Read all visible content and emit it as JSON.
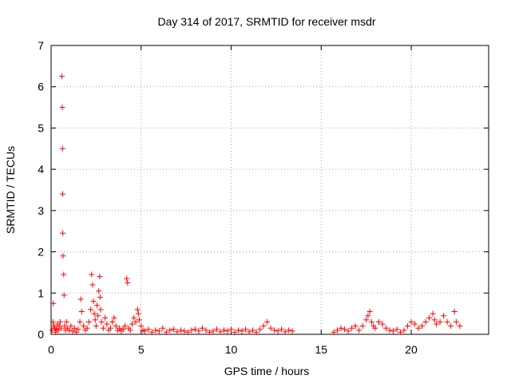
{
  "chart_data": {
    "type": "scatter",
    "title": "Day 314 of 2017, SRMTID for receiver msdr",
    "xlabel": "GPS time / hours",
    "ylabel": "SRMTID / TECUs",
    "xlim": [
      0,
      24.3
    ],
    "ylim": [
      0,
      7
    ],
    "xticks": [
      0,
      5,
      10,
      15,
      20
    ],
    "xtick_labels": [
      "0",
      "5",
      "10",
      "15",
      "20"
    ],
    "yticks": [
      0,
      1,
      2,
      3,
      4,
      5,
      6,
      7
    ],
    "ytick_labels": [
      "0",
      "1",
      "2",
      "3",
      "4",
      "5",
      "6",
      "7"
    ],
    "grid": true,
    "marker": "+",
    "color": "#ff0000",
    "series": [
      {
        "name": "SRMTID",
        "points": [
          [
            0.05,
            0.1
          ],
          [
            0.1,
            0.3
          ],
          [
            0.12,
            0.75
          ],
          [
            0.15,
            0.2
          ],
          [
            0.2,
            0.15
          ],
          [
            0.25,
            0.05
          ],
          [
            0.3,
            0.12
          ],
          [
            0.35,
            0.25
          ],
          [
            0.4,
            0.1
          ],
          [
            0.45,
            0.2
          ],
          [
            0.5,
            0.3
          ],
          [
            0.55,
            0.15
          ],
          [
            0.6,
            6.25
          ],
          [
            0.62,
            5.5
          ],
          [
            0.63,
            4.5
          ],
          [
            0.64,
            3.4
          ],
          [
            0.65,
            2.45
          ],
          [
            0.66,
            1.9
          ],
          [
            0.7,
            1.45
          ],
          [
            0.72,
            0.95
          ],
          [
            0.75,
            0.2
          ],
          [
            0.8,
            0.1
          ],
          [
            0.85,
            0.3
          ],
          [
            0.9,
            0.15
          ],
          [
            1.0,
            0.1
          ],
          [
            1.1,
            0.2
          ],
          [
            1.2,
            0.08
          ],
          [
            1.3,
            0.15
          ],
          [
            1.4,
            0.05
          ],
          [
            1.5,
            0.12
          ],
          [
            1.6,
            0.3
          ],
          [
            1.65,
            0.85
          ],
          [
            1.7,
            0.55
          ],
          [
            1.8,
            0.2
          ],
          [
            1.9,
            0.1
          ],
          [
            2.0,
            0.15
          ],
          [
            2.1,
            0.3
          ],
          [
            2.2,
            0.6
          ],
          [
            2.25,
            1.45
          ],
          [
            2.3,
            1.2
          ],
          [
            2.35,
            0.8
          ],
          [
            2.4,
            0.5
          ],
          [
            2.45,
            0.35
          ],
          [
            2.5,
            0.2
          ],
          [
            2.55,
            0.7
          ],
          [
            2.6,
            0.45
          ],
          [
            2.65,
            1.05
          ],
          [
            2.7,
            1.4
          ],
          [
            2.72,
            0.9
          ],
          [
            2.75,
            0.6
          ],
          [
            2.8,
            0.3
          ],
          [
            2.9,
            0.15
          ],
          [
            3.0,
            0.4
          ],
          [
            3.1,
            0.25
          ],
          [
            3.2,
            0.1
          ],
          [
            3.3,
            0.15
          ],
          [
            3.4,
            0.3
          ],
          [
            3.5,
            0.4
          ],
          [
            3.6,
            0.2
          ],
          [
            3.7,
            0.1
          ],
          [
            3.8,
            0.15
          ],
          [
            3.9,
            0.08
          ],
          [
            4.0,
            0.12
          ],
          [
            4.1,
            0.2
          ],
          [
            4.2,
            1.35
          ],
          [
            4.25,
            1.25
          ],
          [
            4.3,
            0.15
          ],
          [
            4.4,
            0.1
          ],
          [
            4.5,
            0.25
          ],
          [
            4.6,
            0.4
          ],
          [
            4.7,
            0.3
          ],
          [
            4.8,
            0.6
          ],
          [
            4.85,
            0.5
          ],
          [
            4.9,
            0.35
          ],
          [
            5.0,
            0.2
          ],
          [
            5.1,
            0.1
          ],
          [
            5.2,
            0.08
          ],
          [
            5.4,
            0.12
          ],
          [
            5.6,
            0.05
          ],
          [
            5.8,
            0.1
          ],
          [
            6.0,
            0.08
          ],
          [
            6.2,
            0.15
          ],
          [
            6.4,
            0.05
          ],
          [
            6.6,
            0.1
          ],
          [
            6.8,
            0.12
          ],
          [
            7.0,
            0.06
          ],
          [
            7.2,
            0.1
          ],
          [
            7.4,
            0.08
          ],
          [
            7.6,
            0.05
          ],
          [
            7.8,
            0.1
          ],
          [
            8.0,
            0.12
          ],
          [
            8.2,
            0.08
          ],
          [
            8.4,
            0.15
          ],
          [
            8.6,
            0.1
          ],
          [
            8.8,
            0.05
          ],
          [
            9.0,
            0.08
          ],
          [
            9.2,
            0.12
          ],
          [
            9.4,
            0.06
          ],
          [
            9.6,
            0.1
          ],
          [
            9.8,
            0.08
          ],
          [
            10.0,
            0.12
          ],
          [
            10.2,
            0.05
          ],
          [
            10.4,
            0.1
          ],
          [
            10.6,
            0.08
          ],
          [
            10.8,
            0.12
          ],
          [
            11.0,
            0.06
          ],
          [
            11.2,
            0.1
          ],
          [
            11.4,
            0.05
          ],
          [
            11.6,
            0.12
          ],
          [
            11.8,
            0.2
          ],
          [
            12.0,
            0.3
          ],
          [
            12.2,
            0.15
          ],
          [
            12.4,
            0.1
          ],
          [
            12.6,
            0.08
          ],
          [
            12.8,
            0.12
          ],
          [
            13.0,
            0.06
          ],
          [
            13.2,
            0.1
          ],
          [
            13.4,
            0.08
          ],
          [
            15.7,
            0.05
          ],
          [
            15.9,
            0.1
          ],
          [
            16.1,
            0.15
          ],
          [
            16.3,
            0.12
          ],
          [
            16.5,
            0.08
          ],
          [
            16.7,
            0.15
          ],
          [
            16.9,
            0.2
          ],
          [
            17.1,
            0.1
          ],
          [
            17.3,
            0.2
          ],
          [
            17.5,
            0.35
          ],
          [
            17.6,
            0.45
          ],
          [
            17.7,
            0.55
          ],
          [
            17.8,
            0.3
          ],
          [
            17.9,
            0.2
          ],
          [
            18.0,
            0.15
          ],
          [
            18.2,
            0.3
          ],
          [
            18.4,
            0.25
          ],
          [
            18.6,
            0.15
          ],
          [
            18.8,
            0.1
          ],
          [
            19.0,
            0.08
          ],
          [
            19.2,
            0.12
          ],
          [
            19.4,
            0.05
          ],
          [
            19.6,
            0.1
          ],
          [
            19.8,
            0.2
          ],
          [
            20.0,
            0.3
          ],
          [
            20.2,
            0.25
          ],
          [
            20.4,
            0.15
          ],
          [
            20.6,
            0.2
          ],
          [
            20.8,
            0.3
          ],
          [
            21.0,
            0.4
          ],
          [
            21.2,
            0.5
          ],
          [
            21.3,
            0.35
          ],
          [
            21.4,
            0.25
          ],
          [
            21.6,
            0.3
          ],
          [
            21.8,
            0.45
          ],
          [
            22.0,
            0.3
          ],
          [
            22.2,
            0.2
          ],
          [
            22.4,
            0.55
          ],
          [
            22.5,
            0.3
          ],
          [
            22.7,
            0.2
          ]
        ]
      }
    ]
  }
}
